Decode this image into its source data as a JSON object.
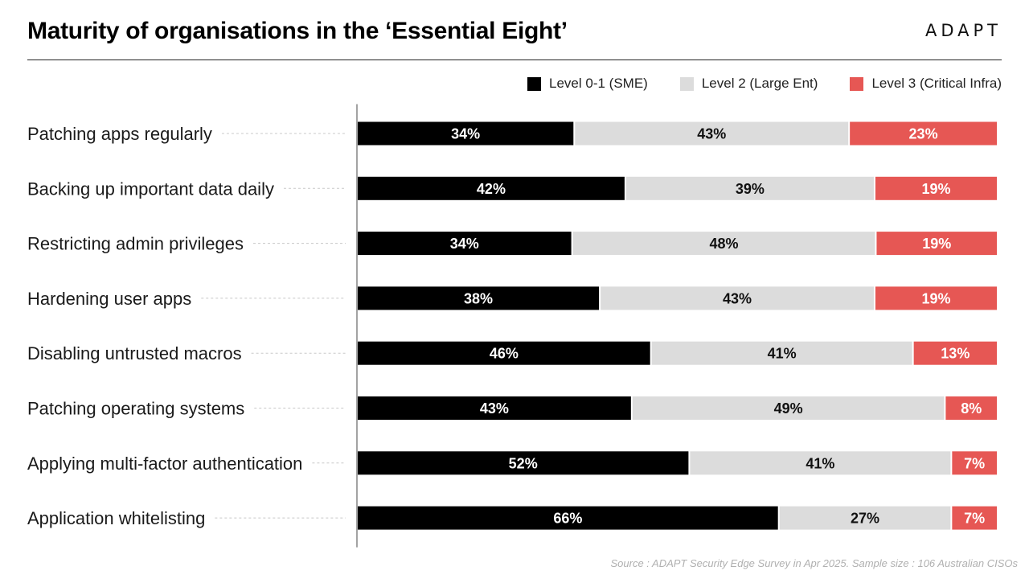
{
  "header": {
    "title": "Maturity of organisations in the ‘Essential Eight’",
    "logo_text": "ADAPT"
  },
  "footer": {
    "source": "Source : ADAPT Security Edge Survey in Apr 2025. Sample size : 106 Australian CISOs"
  },
  "chart_data": {
    "type": "bar",
    "orientation": "horizontal",
    "stacked": true,
    "normalized_to": 100,
    "legend_placement": "top-right",
    "grid": false,
    "categories": [
      "Patching apps regularly",
      "Backing up important data daily",
      "Restricting admin privileges",
      "Hardening user apps",
      "Disabling untrusted macros",
      "Patching operating systems",
      "Applying multi-factor authentication",
      "Application whitelisting"
    ],
    "series": [
      {
        "name": "Level 0-1 (SME)",
        "color": "#000000",
        "label_color": "#ffffff",
        "values": [
          34,
          42,
          34,
          38,
          46,
          43,
          52,
          66
        ],
        "labels": [
          "34%",
          "42%",
          "34%",
          "38%",
          "46%",
          "43%",
          "52%",
          "66%"
        ]
      },
      {
        "name": "Level 2 (Large Ent)",
        "color": "#dcdcdc",
        "label_color": "#111111",
        "values": [
          43,
          39,
          48,
          43,
          41,
          49,
          41,
          27
        ],
        "labels": [
          "43%",
          "39%",
          "48%",
          "43%",
          "41%",
          "49%",
          "41%",
          "27%"
        ]
      },
      {
        "name": "Level 3 (Critical Infra)",
        "color": "#e65754",
        "label_color": "#ffffff",
        "values": [
          23,
          19,
          19,
          19,
          13,
          8,
          7,
          7
        ],
        "labels": [
          "23%",
          "19%",
          "19%",
          "19%",
          "13%",
          "8%",
          "7%",
          "7%"
        ]
      }
    ]
  }
}
